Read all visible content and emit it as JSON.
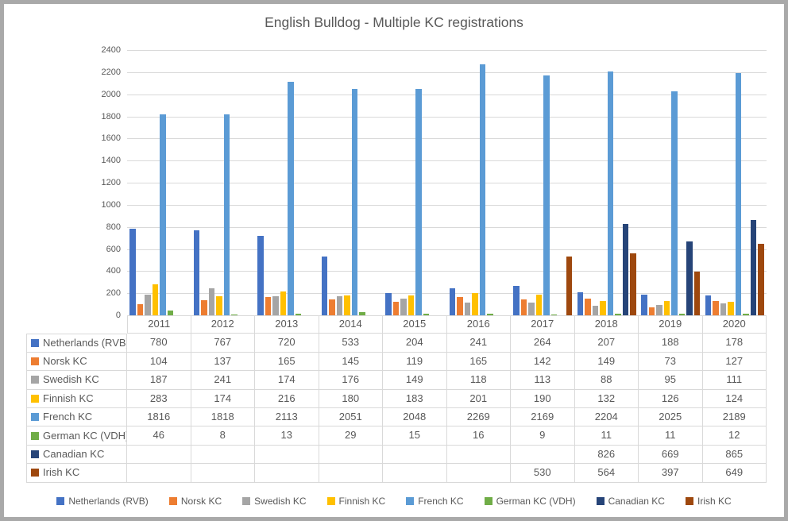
{
  "chart_data": {
    "type": "bar",
    "title": "English Bulldog - Multiple KC registrations",
    "categories": [
      "2011",
      "2012",
      "2013",
      "2014",
      "2015",
      "2016",
      "2017",
      "2018",
      "2019",
      "2020"
    ],
    "series": [
      {
        "name": "Netherlands (RVB)",
        "color": "#4472C4",
        "values": [
          780,
          767,
          720,
          533,
          204,
          241,
          264,
          207,
          188,
          178
        ]
      },
      {
        "name": "Norsk KC",
        "color": "#ED7D31",
        "values": [
          104,
          137,
          165,
          145,
          119,
          165,
          142,
          149,
          73,
          127
        ]
      },
      {
        "name": "Swedish KC",
        "color": "#A5A5A5",
        "values": [
          187,
          241,
          174,
          176,
          149,
          118,
          113,
          88,
          95,
          111
        ]
      },
      {
        "name": "Finnish KC",
        "color": "#FFC000",
        "values": [
          283,
          174,
          216,
          180,
          183,
          201,
          190,
          132,
          126,
          124
        ]
      },
      {
        "name": "French KC",
        "color": "#5B9BD5",
        "values": [
          1816,
          1818,
          2113,
          2051,
          2048,
          2269,
          2169,
          2204,
          2025,
          2189
        ]
      },
      {
        "name": "German KC (VDH)",
        "color": "#70AD47",
        "values": [
          46,
          8,
          13,
          29,
          15,
          16,
          9,
          11,
          11,
          12
        ]
      },
      {
        "name": "Canadian KC",
        "color": "#264478",
        "values": [
          null,
          null,
          null,
          null,
          null,
          null,
          null,
          826,
          669,
          865
        ]
      },
      {
        "name": "Irish KC",
        "color": "#9E480E",
        "values": [
          null,
          null,
          null,
          null,
          null,
          null,
          530,
          564,
          397,
          649
        ]
      }
    ],
    "ylim": [
      0,
      2400
    ],
    "ytick_step": 200,
    "grid": true,
    "legend_position": "bottom",
    "data_table": true,
    "colors": {
      "text": "#595959",
      "gridline": "#D9D9D9",
      "table_border": "#D9D9D9",
      "frame": "#A9A9A9"
    }
  }
}
